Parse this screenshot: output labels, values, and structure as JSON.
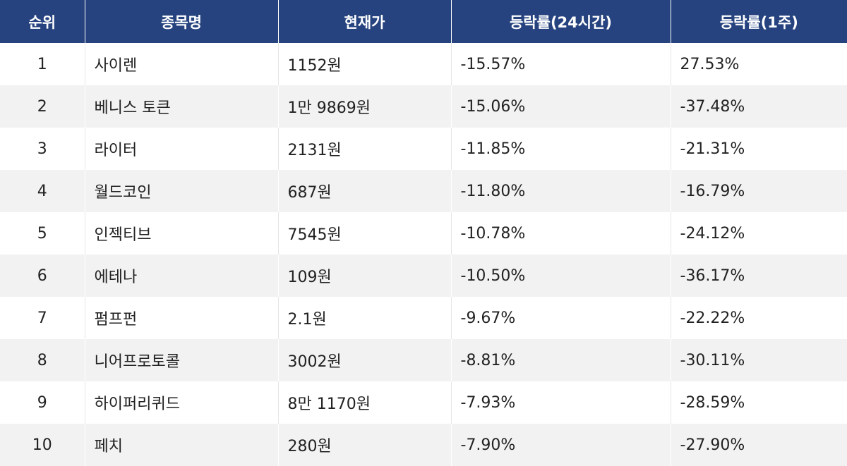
{
  "chart_data": {
    "type": "table",
    "columns": [
      "순위",
      "종목명",
      "현재가",
      "등락률(24시간)",
      "등락률(1주)"
    ],
    "rows": [
      [
        "1",
        "사이렌",
        "1152원",
        "-15.57%",
        "27.53%"
      ],
      [
        "2",
        "베니스 토큰",
        "1만 9869원",
        "-15.06%",
        "-37.48%"
      ],
      [
        "3",
        "라이터",
        "2131원",
        "-11.85%",
        "-21.31%"
      ],
      [
        "4",
        "월드코인",
        "687원",
        "-11.80%",
        "-16.79%"
      ],
      [
        "5",
        "인젝티브",
        "7545원",
        "-10.78%",
        "-24.12%"
      ],
      [
        "6",
        "에테나",
        "109원",
        "-10.50%",
        "-36.17%"
      ],
      [
        "7",
        "펌프펀",
        "2.1원",
        "-9.67%",
        "-22.22%"
      ],
      [
        "8",
        "니어프로토콜",
        "3002원",
        "-8.81%",
        "-30.11%"
      ],
      [
        "9",
        "하이퍼리퀴드",
        "8만 1170원",
        "-7.93%",
        "-28.59%"
      ],
      [
        "10",
        "페치",
        "280원",
        "-7.90%",
        "-27.90%"
      ]
    ]
  },
  "colors": {
    "header_bg": "#26437f",
    "header_text": "#ffffff",
    "row_alt_bg": "#f2f2f2",
    "row_bg": "#ffffff",
    "text": "#222222"
  }
}
